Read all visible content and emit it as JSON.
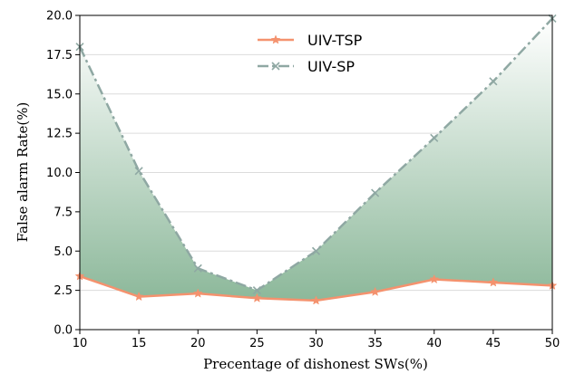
{
  "chart_data": {
    "type": "line",
    "xlabel": "Precentage of dishonest SWs(%)",
    "ylabel": "False alarm Rate(%)",
    "x": [
      10,
      15,
      20,
      25,
      30,
      35,
      40,
      45,
      50
    ],
    "xlim": [
      10,
      50
    ],
    "ylim": [
      0,
      20
    ],
    "xticks": [
      "10",
      "15",
      "20",
      "25",
      "30",
      "35",
      "40",
      "45",
      "50"
    ],
    "yticks": [
      "0.0",
      "2.5",
      "5.0",
      "7.5",
      "10.0",
      "12.5",
      "15.0",
      "17.5",
      "20.0"
    ],
    "grid": true,
    "legend_position": "top-center",
    "fill_between_series": true,
    "series": [
      {
        "name": "UIV-TSP",
        "values": [
          3.4,
          2.1,
          2.3,
          2.0,
          1.85,
          2.4,
          3.2,
          3.0,
          2.8
        ],
        "color": "#f4926e",
        "line_style": "solid",
        "marker": "star"
      },
      {
        "name": "UIV-SP",
        "values": [
          18.0,
          10.1,
          3.9,
          2.5,
          5.0,
          8.7,
          12.2,
          15.8,
          19.8
        ],
        "color": "#8fa8a3",
        "line_style": "dash-dot",
        "marker": "x"
      }
    ],
    "fill_color_top": "#ffffff",
    "fill_color_bottom": "#8cb89a"
  }
}
